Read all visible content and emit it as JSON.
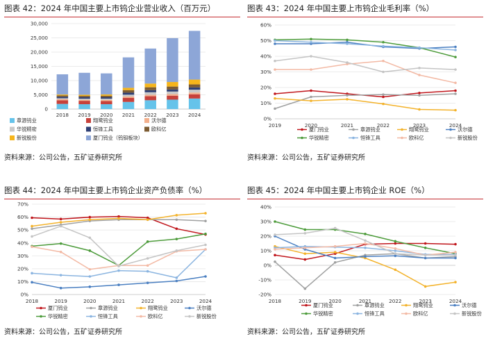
{
  "source_text": "资料来源：公司公告，五矿证券研究所",
  "chart_data": [
    {
      "type": "bar",
      "stacked": true,
      "title": "图表 42：2024 年中国主要上市钨企业营业收入（百万元）",
      "categories": [
        "2018",
        "2019",
        "2020",
        "2021",
        "2022",
        "2023",
        "2024"
      ],
      "y_ticks": [
        "0",
        "5,000",
        "10,000",
        "15,000",
        "20,000",
        "25,000",
        "30,000"
      ],
      "ylim": [
        0,
        30000
      ],
      "series": [
        {
          "name": "章源钨业",
          "color": "#65c3ea",
          "values": [
            1800,
            1700,
            1700,
            2500,
            3100,
            3300,
            3700
          ]
        },
        {
          "name": "翔鹭钨业",
          "color": "#c7413b",
          "values": [
            1300,
            1200,
            1100,
            1400,
            1400,
            1400,
            1500
          ]
        },
        {
          "name": "沃尔德",
          "color": "#f3b08d",
          "values": [
            400,
            350,
            400,
            500,
            500,
            550,
            600
          ]
        },
        {
          "name": "华锐精密",
          "color": "#c9c9c9",
          "values": [
            300,
            380,
            450,
            650,
            900,
            900,
            1000
          ]
        },
        {
          "name": "恒锋工具",
          "color": "#2e3f74",
          "values": [
            500,
            550,
            500,
            700,
            750,
            750,
            800
          ]
        },
        {
          "name": "欧科亿",
          "color": "#7c5b32",
          "values": [
            450,
            450,
            530,
            900,
            1000,
            1000,
            1050
          ]
        },
        {
          "name": "新锐股份",
          "color": "#f6b51b",
          "values": [
            350,
            400,
            450,
            800,
            1300,
            1600,
            1700
          ]
        },
        {
          "name": "厦门钨业（钨钼板块）",
          "color": "#8da6d7",
          "values": [
            7100,
            7700,
            7400,
            10700,
            12300,
            15400,
            17100
          ]
        }
      ]
    },
    {
      "type": "line",
      "title": "图表 43：2024 年中国主要上市钨企业毛利率（%）",
      "categories": [
        "2019",
        "2020",
        "2021",
        "2022",
        "2023",
        "2024"
      ],
      "y_ticks": [
        "0%",
        "10%",
        "20%",
        "30%",
        "40%",
        "50%",
        "60%"
      ],
      "ylim": [
        0,
        60
      ],
      "series": [
        {
          "name": "厦门钨业",
          "color": "#c0151b",
          "values": [
            16,
            18,
            16,
            14,
            16.5,
            18
          ]
        },
        {
          "name": "章源钨业",
          "color": "#9fa0a0",
          "values": [
            6.5,
            14,
            15,
            15.5,
            15,
            16
          ]
        },
        {
          "name": "翔鹭钨业",
          "color": "#f3b22a",
          "values": [
            13,
            11.5,
            12.5,
            9.5,
            6,
            5.5
          ]
        },
        {
          "name": "沃尔德",
          "color": "#4a7fc1",
          "values": [
            48,
            48,
            49,
            46,
            45,
            46
          ]
        },
        {
          "name": "华锐精密",
          "color": "#4c9b3a",
          "values": [
            50.5,
            51,
            50.5,
            49,
            45.5,
            39.5
          ]
        },
        {
          "name": "恒锋工具",
          "color": "#8ab4e0",
          "values": [
            50,
            49,
            48,
            46.5,
            45.5,
            44
          ]
        },
        {
          "name": "欧科亿",
          "color": "#f3b9a4",
          "values": [
            31.5,
            31.5,
            35,
            37,
            28,
            23
          ]
        },
        {
          "name": "新锐股份",
          "color": "#c4c4c4",
          "values": [
            37,
            40,
            36,
            30,
            32.5,
            31.5
          ]
        }
      ]
    },
    {
      "type": "line",
      "title": "图表 44：2024 年中国主要上市钨企业资产负债率（%）",
      "categories": [
        "2018",
        "2019",
        "2020",
        "2021",
        "2022",
        "2023",
        "2024"
      ],
      "y_ticks": [
        "0%",
        "10%",
        "20%",
        "30%",
        "40%",
        "50%",
        "60%",
        "70%"
      ],
      "ylim": [
        0,
        70
      ],
      "series": [
        {
          "name": "厦门钨业",
          "color": "#c0151b",
          "values": [
            59.5,
            58.5,
            60,
            60.5,
            59.5,
            51,
            46.5
          ]
        },
        {
          "name": "章源钨业",
          "color": "#9fa0a0",
          "values": [
            51,
            54,
            57,
            58,
            58,
            58,
            57
          ]
        },
        {
          "name": "翔鹭钨业",
          "color": "#f3b22a",
          "values": [
            53,
            56,
            58,
            59,
            58,
            61.5,
            63
          ]
        },
        {
          "name": "沃尔德",
          "color": "#4a7fc1",
          "values": [
            9.5,
            5,
            6,
            7.5,
            9,
            10.5,
            14
          ]
        },
        {
          "name": "华锐精密",
          "color": "#4c9b3a",
          "values": [
            37.5,
            39.5,
            34,
            22.5,
            41,
            43,
            47
          ]
        },
        {
          "name": "恒锋工具",
          "color": "#8ab4e0",
          "values": [
            16.5,
            15,
            14,
            18.5,
            18,
            13,
            35
          ]
        },
        {
          "name": "欧科亿",
          "color": "#f3b9a4",
          "values": [
            37,
            33,
            19.5,
            22.5,
            22.5,
            33.5,
            35
          ]
        },
        {
          "name": "新锐股份",
          "color": "#c4c4c4",
          "values": [
            45,
            53,
            44,
            22,
            28,
            34,
            38.5
          ]
        }
      ]
    },
    {
      "type": "line",
      "title": "图表 45：2024 年中国主要上市钨企业 ROE（%）",
      "categories": [
        "2018",
        "2019",
        "2020",
        "2021",
        "2022",
        "2023",
        "2024"
      ],
      "y_ticks": [
        "-20%",
        "-10%",
        "0%",
        "10%",
        "20%",
        "30%",
        "40%"
      ],
      "ylim": [
        -20,
        40
      ],
      "series": [
        {
          "name": "厦门钨业",
          "color": "#c0151b",
          "values": [
            7,
            4,
            8,
            14.5,
            15,
            15,
            14.5
          ]
        },
        {
          "name": "章源钨业",
          "color": "#9fa0a0",
          "values": [
            2.5,
            -16,
            2,
            7,
            8,
            5,
            6
          ]
        },
        {
          "name": "翔鹭钨业",
          "color": "#f3b22a",
          "values": [
            13,
            8,
            9,
            5,
            -3,
            -14.5,
            -11.5
          ]
        },
        {
          "name": "沃尔德",
          "color": "#4a7fc1",
          "values": [
            20,
            11,
            5,
            6,
            6.5,
            5,
            5
          ]
        },
        {
          "name": "华锐精密",
          "color": "#4c9b3a",
          "values": [
            30,
            24.5,
            24.5,
            21.5,
            16.5,
            12,
            8
          ]
        },
        {
          "name": "恒锋工具",
          "color": "#8ab4e0",
          "values": [
            12,
            13,
            12.5,
            12,
            10,
            7.5,
            7.5
          ]
        },
        {
          "name": "欧科亿",
          "color": "#f3b9a4",
          "values": [
            11,
            12,
            13,
            15,
            11.5,
            7,
            9
          ]
        },
        {
          "name": "新锐股份",
          "color": "#c4c4c4",
          "values": [
            21,
            22,
            25.5,
            17,
            8,
            7,
            7
          ]
        }
      ]
    }
  ]
}
